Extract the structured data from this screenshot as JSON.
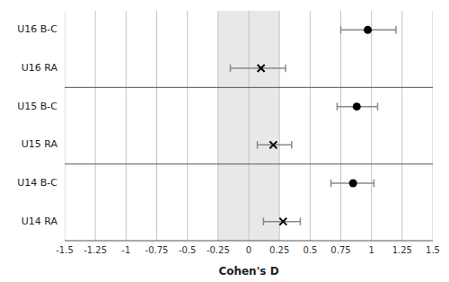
{
  "chart_data": {
    "type": "forest",
    "orientation": "horizontal",
    "categories": [
      "U16 B-C",
      "U16 RA",
      "U15 B-C",
      "U15 RA",
      "U14 B-C",
      "U14 RA"
    ],
    "series": [
      {
        "marker": "circle",
        "color": "#000000",
        "values": [
          0.97,
          null,
          0.88,
          null,
          0.85,
          null
        ],
        "ci_low": [
          0.75,
          null,
          0.72,
          null,
          0.67,
          null
        ],
        "ci_high": [
          1.2,
          null,
          1.05,
          null,
          1.02,
          null
        ]
      },
      {
        "marker": "x",
        "color": "#000000",
        "values": [
          null,
          0.1,
          null,
          0.2,
          null,
          0.28
        ],
        "ci_low": [
          null,
          -0.15,
          null,
          0.07,
          null,
          0.12
        ],
        "ci_high": [
          null,
          0.3,
          null,
          0.35,
          null,
          0.42
        ]
      }
    ],
    "xlim": [
      -1.5,
      1.5
    ],
    "xticks": [
      -1.5,
      -1.25,
      -1,
      -0.75,
      -0.5,
      -0.25,
      0,
      0.25,
      0.5,
      0.75,
      1,
      1.25,
      1.5
    ],
    "xlabel": "Cohen's D",
    "equivalence_band": [
      -0.25,
      0.25
    ],
    "band_color": "#e8e8e8",
    "grid": true
  }
}
